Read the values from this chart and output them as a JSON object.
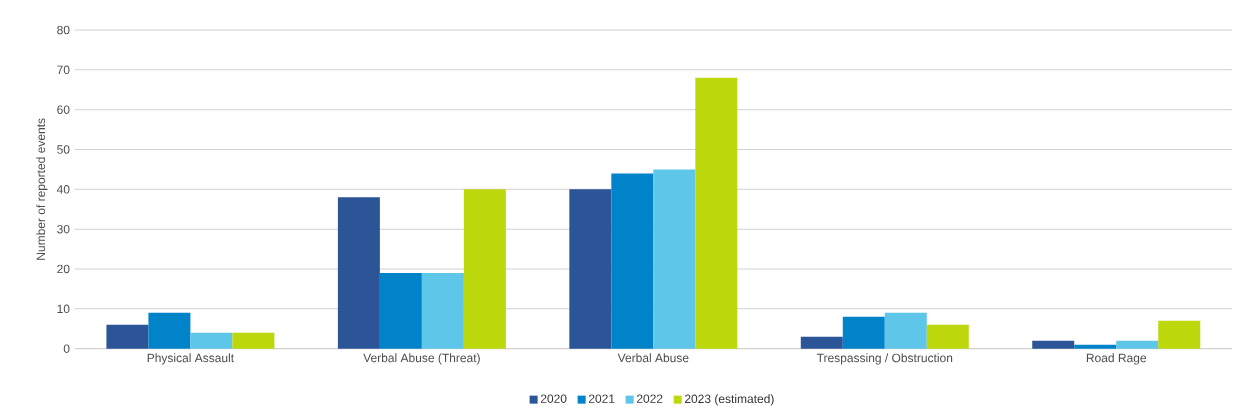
{
  "chart_data": {
    "type": "bar",
    "ylabel": "Number of reported events",
    "categories": [
      "Physical Assault",
      "Verbal Abuse (Threat)",
      "Verbal Abuse",
      "Trespassing / Obstruction",
      "Road Rage"
    ],
    "series": [
      {
        "name": "2020",
        "color": "#2b5597",
        "values": [
          6,
          38,
          40,
          3,
          2
        ]
      },
      {
        "name": "2021",
        "color": "#0083c9",
        "values": [
          9,
          19,
          44,
          8,
          1
        ]
      },
      {
        "name": "2022",
        "color": "#5ec6e8",
        "values": [
          4,
          19,
          45,
          9,
          2
        ]
      },
      {
        "name": "2023 (estimated)",
        "color": "#bcd70b",
        "values": [
          4,
          40,
          68,
          6,
          7
        ]
      }
    ],
    "ylim": [
      0,
      80
    ],
    "yticks": [
      0,
      10,
      20,
      30,
      40,
      50,
      60,
      70,
      80
    ],
    "grid": "y",
    "legend": "bottom"
  }
}
